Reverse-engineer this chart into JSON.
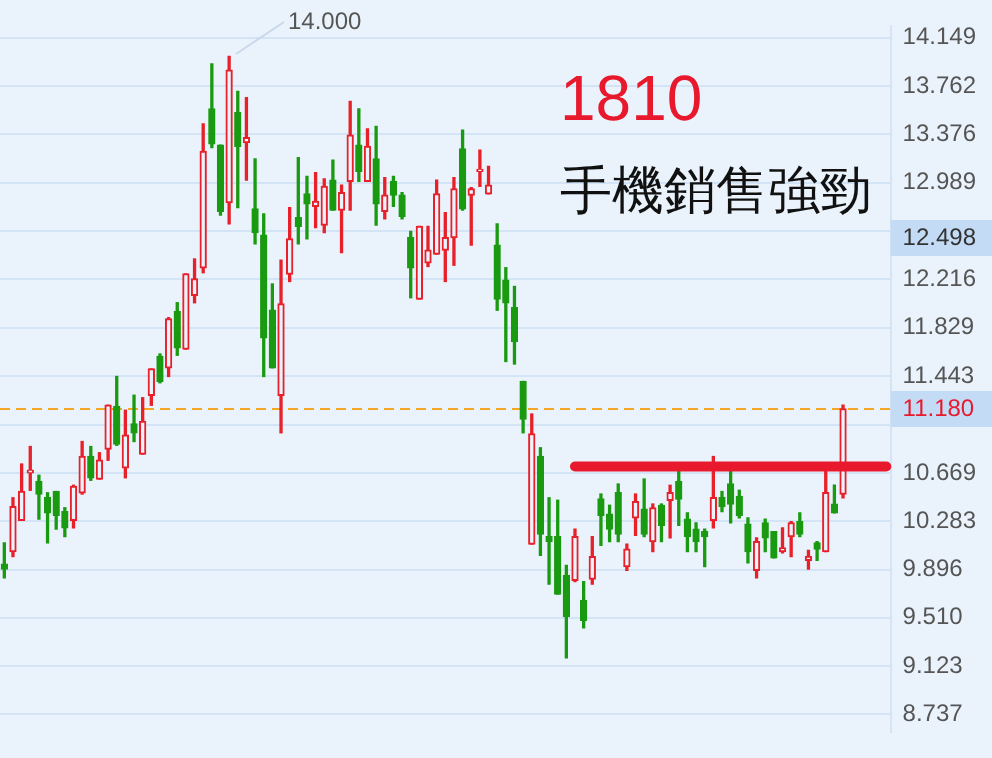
{
  "chart_data": {
    "type": "candlestick",
    "categories": [
      null,
      null,
      null,
      null,
      null,
      null,
      null,
      null,
      null,
      null,
      null,
      null,
      null,
      null,
      null,
      null,
      null,
      null,
      null,
      null,
      null,
      null,
      null,
      null,
      null,
      null,
      null,
      null,
      null,
      null,
      null,
      null,
      null,
      null,
      null,
      null,
      null,
      null,
      null,
      null,
      null,
      null,
      null,
      null,
      null,
      null,
      null,
      null,
      null,
      null,
      null,
      null,
      null,
      null,
      null,
      null,
      null,
      null,
      null,
      null,
      null,
      null,
      null,
      null,
      null,
      null,
      null,
      null,
      null,
      null,
      null,
      null,
      null,
      null,
      null,
      null,
      null,
      null,
      null,
      null,
      null,
      null,
      null,
      null,
      null,
      null,
      null,
      null,
      null,
      null,
      null,
      null,
      null,
      null,
      null,
      null,
      null,
      null,
      null,
      null,
      null,
      null,
      null
    ],
    "ohlc": [
      [
        9.94,
        10.11,
        9.83,
        9.9
      ],
      [
        10.04,
        10.47,
        10.0,
        10.4
      ],
      [
        10.29,
        10.74,
        10.29,
        10.52
      ],
      [
        10.67,
        10.88,
        10.53,
        10.69
      ],
      [
        10.6,
        10.65,
        10.3,
        10.5
      ],
      [
        10.47,
        10.51,
        10.11,
        10.35
      ],
      [
        10.52,
        10.52,
        10.22,
        10.33
      ],
      [
        10.36,
        10.39,
        10.16,
        10.23
      ],
      [
        10.29,
        10.57,
        10.23,
        10.56
      ],
      [
        10.51,
        10.92,
        10.5,
        10.8
      ],
      [
        10.8,
        10.88,
        10.61,
        10.63
      ],
      [
        10.62,
        10.83,
        10.62,
        10.77
      ],
      [
        10.86,
        11.21,
        10.77,
        11.21
      ],
      [
        11.2,
        11.44,
        10.89,
        10.9
      ],
      [
        10.71,
        11.17,
        10.63,
        10.97
      ],
      [
        11.06,
        11.29,
        10.92,
        10.99
      ],
      [
        10.82,
        11.27,
        10.82,
        11.08
      ],
      [
        11.29,
        11.5,
        11.21,
        11.5
      ],
      [
        11.6,
        11.62,
        11.39,
        11.4
      ],
      [
        11.51,
        11.91,
        11.44,
        11.9
      ],
      [
        11.96,
        12.03,
        11.61,
        11.67
      ],
      [
        11.66,
        12.26,
        11.66,
        12.26
      ],
      [
        12.09,
        12.38,
        12.03,
        12.22
      ],
      [
        12.31,
        13.46,
        12.27,
        13.24
      ],
      [
        13.58,
        13.94,
        13.27,
        13.3
      ],
      [
        13.29,
        13.29,
        12.73,
        12.76
      ],
      [
        12.83,
        14.0,
        12.66,
        13.89
      ],
      [
        13.55,
        13.72,
        12.79,
        13.28
      ],
      [
        13.31,
        13.67,
        13.01,
        13.35
      ],
      [
        12.78,
        13.18,
        12.5,
        12.59
      ],
      [
        12.57,
        12.74,
        11.44,
        11.75
      ],
      [
        11.97,
        12.18,
        11.51,
        11.51
      ],
      [
        11.29,
        12.37,
        10.99,
        12.02
      ],
      [
        12.26,
        12.79,
        12.2,
        12.54
      ],
      [
        12.71,
        13.19,
        12.5,
        12.64
      ],
      [
        12.9,
        13.04,
        12.54,
        12.82
      ],
      [
        12.8,
        13.07,
        12.63,
        12.84
      ],
      [
        12.65,
        13.02,
        12.59,
        12.96
      ],
      [
        13.01,
        13.17,
        12.77,
        12.77
      ],
      [
        12.77,
        12.97,
        12.43,
        12.91
      ],
      [
        13.0,
        13.64,
        12.77,
        13.37
      ],
      [
        13.29,
        13.58,
        13.0,
        13.08
      ],
      [
        13.0,
        13.42,
        13.0,
        13.28
      ],
      [
        13.18,
        13.44,
        12.65,
        12.82
      ],
      [
        12.76,
        13.03,
        12.7,
        12.89
      ],
      [
        13.0,
        13.04,
        12.8,
        12.89
      ],
      [
        12.89,
        12.91,
        12.7,
        12.72
      ],
      [
        12.55,
        12.6,
        12.07,
        12.31
      ],
      [
        12.06,
        12.64,
        12.06,
        12.64
      ],
      [
        12.35,
        12.64,
        12.32,
        12.45
      ],
      [
        12.42,
        13.01,
        12.42,
        12.9
      ],
      [
        12.45,
        12.75,
        12.2,
        12.55
      ],
      [
        12.55,
        13.03,
        12.33,
        12.94
      ],
      [
        13.26,
        13.41,
        12.77,
        12.78
      ],
      [
        12.89,
        12.95,
        12.49,
        12.94
      ],
      [
        13.08,
        13.25,
        12.96,
        13.09
      ],
      [
        12.9,
        13.12,
        12.9,
        12.97
      ],
      [
        12.49,
        12.66,
        11.97,
        12.06
      ],
      [
        12.21,
        12.31,
        11.56,
        12.03
      ],
      [
        11.99,
        12.16,
        11.54,
        11.72
      ],
      [
        11.4,
        11.4,
        10.99,
        11.1
      ],
      [
        10.1,
        11.14,
        10.1,
        10.98
      ],
      [
        10.8,
        10.87,
        10.01,
        10.18
      ],
      [
        10.16,
        10.47,
        9.78,
        10.12
      ],
      [
        10.16,
        10.45,
        9.7,
        9.7
      ],
      [
        9.85,
        9.93,
        9.19,
        9.52
      ],
      [
        9.81,
        10.22,
        9.8,
        10.16
      ],
      [
        9.65,
        9.8,
        9.43,
        9.49
      ],
      [
        9.82,
        10.16,
        9.78,
        10.0
      ],
      [
        10.46,
        10.5,
        10.09,
        10.33
      ],
      [
        10.34,
        10.41,
        10.12,
        10.22
      ],
      [
        10.51,
        10.58,
        10.12,
        10.18
      ],
      [
        9.92,
        10.1,
        9.89,
        10.06
      ],
      [
        10.31,
        10.5,
        10.17,
        10.44
      ],
      [
        10.38,
        10.62,
        10.16,
        10.18
      ],
      [
        10.12,
        10.42,
        10.04,
        10.39
      ],
      [
        10.41,
        10.42,
        10.12,
        10.25
      ],
      [
        10.45,
        10.57,
        10.15,
        10.51
      ],
      [
        10.6,
        10.69,
        10.25,
        10.46
      ],
      [
        10.3,
        10.35,
        10.04,
        10.16
      ],
      [
        10.22,
        10.27,
        10.04,
        10.12
      ],
      [
        10.2,
        10.22,
        9.92,
        10.16
      ],
      [
        10.29,
        10.8,
        10.23,
        10.47
      ],
      [
        10.47,
        10.52,
        10.36,
        10.4
      ],
      [
        10.58,
        10.68,
        10.27,
        10.42
      ],
      [
        10.48,
        10.53,
        10.31,
        10.33
      ],
      [
        10.26,
        10.31,
        9.95,
        10.04
      ],
      [
        9.89,
        10.15,
        9.83,
        10.12
      ],
      [
        10.27,
        10.3,
        10.04,
        10.15
      ],
      [
        10.2,
        10.2,
        9.99,
        9.99
      ],
      [
        10.04,
        10.23,
        10.03,
        10.07
      ],
      [
        10.16,
        10.28,
        10.0,
        10.27
      ],
      [
        10.28,
        10.35,
        10.16,
        10.18
      ],
      [
        9.97,
        10.05,
        9.9,
        10.0
      ],
      [
        10.11,
        10.12,
        9.97,
        10.06
      ],
      [
        10.04,
        10.72,
        10.04,
        10.51
      ],
      [
        10.42,
        10.57,
        10.35,
        10.35
      ],
      [
        10.5,
        11.21,
        10.47,
        11.18
      ],
      null,
      null,
      null,
      null,
      null
    ],
    "series": [
      {
        "type": "line",
        "color": "#e8192c",
        "values": [
          null,
          null,
          null,
          null,
          null,
          null,
          null,
          null,
          null,
          null,
          null,
          null,
          null,
          null,
          null,
          null,
          null,
          null,
          null,
          null,
          null,
          null,
          null,
          null,
          null,
          null,
          null,
          null,
          null,
          null,
          null,
          null,
          null,
          null,
          null,
          null,
          null,
          null,
          null,
          null,
          null,
          null,
          null,
          null,
          null,
          null,
          null,
          null,
          null,
          null,
          null,
          null,
          null,
          null,
          null,
          null,
          null,
          null,
          null,
          null,
          null,
          null,
          null,
          null,
          null,
          null,
          10.72,
          10.72,
          10.72,
          10.72,
          10.72,
          10.72,
          10.72,
          10.72,
          10.72,
          10.72,
          10.72,
          10.72,
          10.72,
          10.72,
          10.72,
          10.72,
          10.72,
          10.72,
          10.72,
          10.72,
          10.72,
          10.72,
          10.72,
          10.72,
          10.72,
          10.72,
          10.72,
          10.72,
          10.72,
          10.72,
          10.72,
          10.72,
          10.72,
          10.72,
          10.72,
          10.72,
          10.72
        ]
      }
    ],
    "ylim": [
      8.6,
      14.24
    ],
    "yticks": [
      14.149,
      13.762,
      13.376,
      12.989,
      {
        "value": 12.602,
        "label": null
      },
      12.216,
      11.829,
      11.443,
      {
        "value": 11.056,
        "label": null
      },
      10.669,
      10.283,
      9.896,
      {
        "value": 9.51,
        "label": "9.510"
      },
      9.123,
      8.737
    ],
    "grid": "y",
    "tick_labels": "y",
    "ref_lines": [
      {
        "axis": "y",
        "value": 11.18,
        "label": "11.180",
        "color": "#f5a623",
        "line_style": "dashed"
      }
    ],
    "annotations": [
      "1810",
      "手機銷售強勁",
      "14.000",
      "12.498"
    ]
  }
}
